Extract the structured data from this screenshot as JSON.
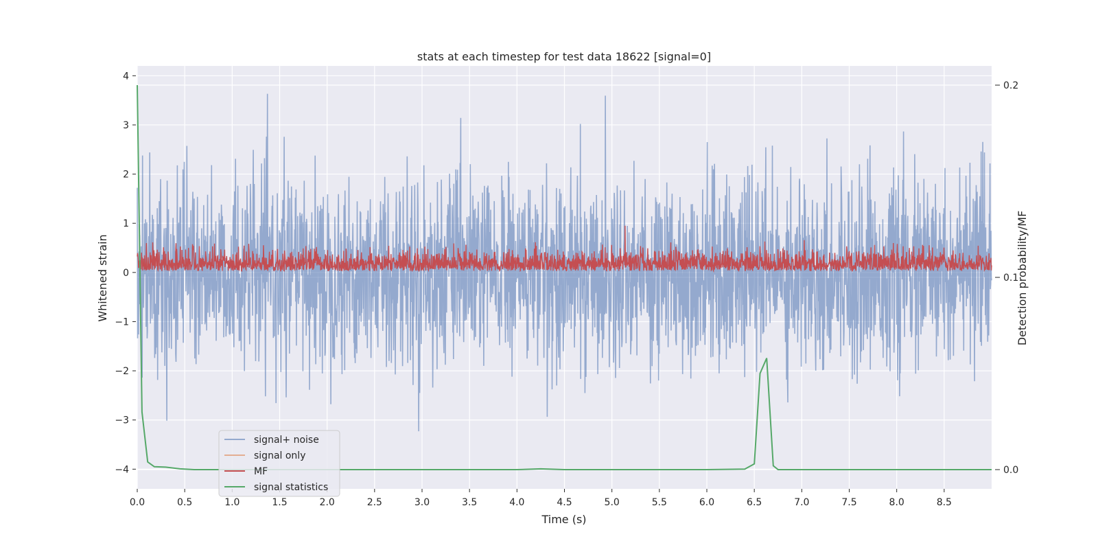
{
  "chart_data": {
    "type": "line",
    "title": "stats at each timestep for test data 18622 [signal=0]",
    "xlabel": "Time (s)",
    "ylabel": "Whitened strain",
    "y2label": "Detection probability/MF",
    "xlim": [
      0.0,
      9.0
    ],
    "ylim": [
      -4.4,
      4.2
    ],
    "y2lim": [
      -0.01,
      0.21
    ],
    "xticks": [
      "0.0",
      "0.5",
      "1.0",
      "1.5",
      "2.0",
      "2.5",
      "3.0",
      "3.5",
      "4.0",
      "4.5",
      "5.0",
      "5.5",
      "6.0",
      "6.5",
      "7.0",
      "7.5",
      "8.0",
      "8.5"
    ],
    "xtick_values": [
      0.0,
      0.5,
      1.0,
      1.5,
      2.0,
      2.5,
      3.0,
      3.5,
      4.0,
      4.5,
      5.0,
      5.5,
      6.0,
      6.5,
      7.0,
      7.5,
      8.0,
      8.5
    ],
    "yticks": [
      "−4",
      "−3",
      "−2",
      "−1",
      "0",
      "1",
      "2",
      "3",
      "4"
    ],
    "ytick_values": [
      -4,
      -3,
      -2,
      -1,
      0,
      1,
      2,
      3,
      4
    ],
    "y2ticks": [
      "0.0",
      "0.1",
      "0.2"
    ],
    "y2tick_values": [
      0.0,
      0.1,
      0.2
    ],
    "grid": true,
    "legend_position": "lower-left",
    "series": [
      {
        "name": "signal+ noise",
        "color": "#4c72b0",
        "axis": "left",
        "style": "noise band",
        "envelope_upper_approx": 2.0,
        "envelope_lower_approx": -2.0,
        "max": 3.87,
        "min": -4.0
      },
      {
        "name": "signal only",
        "color": "#dd8452",
        "axis": "left",
        "values_note": "flat"
      },
      {
        "name": "MF",
        "color": "#c44e52",
        "axis": "left",
        "style": "band",
        "band_low": 0.0,
        "band_high": 0.6
      },
      {
        "name": "signal statistics",
        "color": "#55a868",
        "axis": "right",
        "x": [
          0.0,
          0.05,
          0.11,
          0.18,
          0.3,
          0.45,
          0.6,
          1.0,
          2.0,
          3.0,
          4.0,
          4.25,
          4.5,
          5.0,
          6.0,
          6.4,
          6.5,
          6.56,
          6.63,
          6.7,
          6.75,
          7.0,
          8.0,
          9.0
        ],
        "values": [
          0.2,
          0.03,
          0.004,
          0.0015,
          0.0013,
          0.0004,
          0.0,
          0.0,
          0.0,
          0.0,
          0.0,
          0.0004,
          0.0,
          0.0,
          0.0,
          0.0003,
          0.003,
          0.05,
          0.058,
          0.002,
          0.0,
          0.0,
          0.0,
          0.0
        ]
      }
    ]
  }
}
